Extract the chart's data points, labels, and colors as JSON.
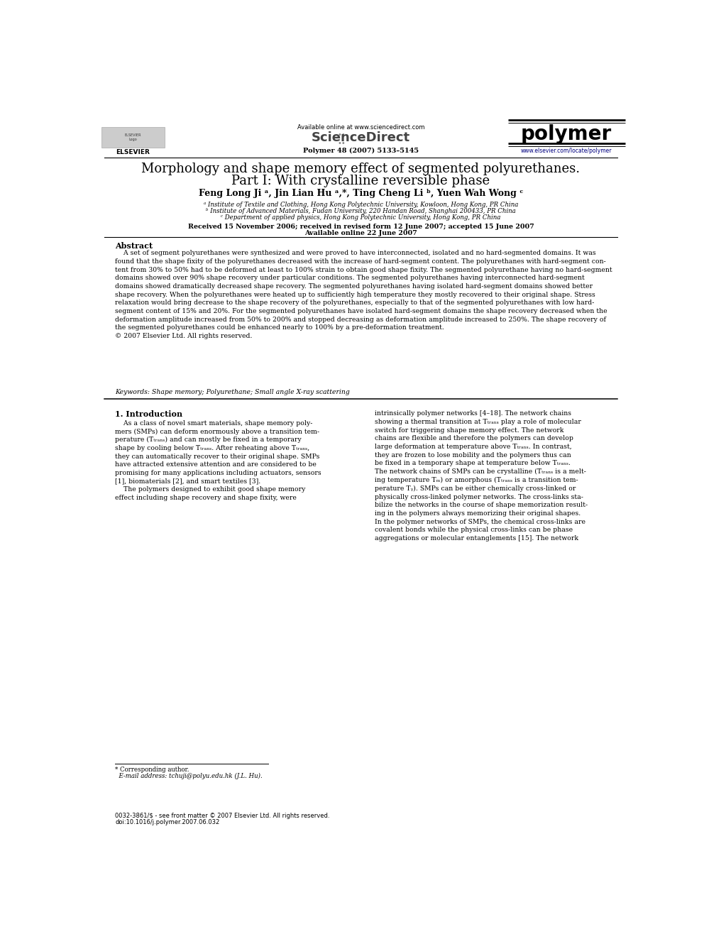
{
  "page_width": 9.92,
  "page_height": 13.23,
  "bg_color": "#ffffff",
  "title_line1": "Morphology and shape memory effect of segmented polyurethanes.",
  "title_line2": "Part I: With crystalline reversible phase",
  "authors": "Feng Long Ji ᵃ, Jin Lian Hu ᵃ,*, Ting Cheng Li ᵇ, Yuen Wah Wong ᶜ",
  "affil_a": "ᵃ Institute of Textile and Clothing, Hong Kong Polytechnic University, Kowloon, Hong Kong, PR China",
  "affil_b": "ᵇ Institute of Advanced Materials, Fudan University, 220 Handan Road, Shanghai 200433, PR China",
  "affil_c": "ᶜ Department of applied physics, Hong Kong Polytechnic University, Hong Kong, PR China",
  "received": "Received 15 November 2006; received in revised form 12 June 2007; accepted 15 June 2007",
  "available": "Available online 22 June 2007",
  "journal_info": "Polymer 48 (2007) 5133–5145",
  "abstract_title": "Abstract",
  "abstract_text": "    A set of segment polyurethanes were synthesized and were proved to have interconnected, isolated and no hard-segmented domains. It was\nfound that the shape fixity of the polyurethanes decreased with the increase of hard-segment content. The polyurethanes with hard-segment con-\ntent from 30% to 50% had to be deformed at least to 100% strain to obtain good shape fixity. The segmented polyurethane having no hard-segment\ndomains showed over 90% shape recovery under particular conditions. The segmented polyurethanes having interconnected hard-segment\ndomains showed dramatically decreased shape recovery. The segmented polyurethanes having isolated hard-segment domains showed better\nshape recovery. When the polyurethanes were heated up to sufficiently high temperature they mostly recovered to their original shape. Stress\nrelaxation would bring decrease to the shape recovery of the polyurethanes, especially to that of the segmented polyurethanes with low hard-\nsegment content of 15% and 20%. For the segmented polyurethanes have isolated hard-segment domains the shape recovery decreased when the\ndeformation amplitude increased from 50% to 200% and stopped decreasing as deformation amplitude increased to 250%. The shape recovery of\nthe segmented polyurethanes could be enhanced nearly to 100% by a pre-deformation treatment.\n© 2007 Elsevier Ltd. All rights reserved.",
  "keywords": "Keywords: Shape memory; Polyurethane; Small angle X-ray scattering",
  "section1_title": "1. Introduction",
  "section1_col1": "    As a class of novel smart materials, shape memory poly-\nmers (SMPs) can deform enormously above a transition tem-\nperature (Tₜᵣₐₙₛ) and can mostly be fixed in a temporary\nshape by cooling below Tₜᵣₐₙₛ. After reheating above Tₜᵣₐₙₛ,\nthey can automatically recover to their original shape. SMPs\nhave attracted extensive attention and are considered to be\npromising for many applications including actuators, sensors\n[1], biomaterials [2], and smart textiles [3].\n    The polymers designed to exhibit good shape memory\neffect including shape recovery and shape fixity, were",
  "section1_col2": "intrinsically polymer networks [4–18]. The network chains\nshowing a thermal transition at Tₜᵣₐₙₛ play a role of molecular\nswitch for triggering shape memory effect. The network\nchains are flexible and therefore the polymers can develop\nlarge deformation at temperature above Tₜᵣₐₙₛ. In contrast,\nthey are frozen to lose mobility and the polymers thus can\nbe fixed in a temporary shape at temperature below Tₜᵣₐₙₛ.\nThe network chains of SMPs can be crystalline (Tₜᵣₐₙₛ is a melt-\ning temperature Tₘ) or amorphous (Tₜᵣₐₙₛ is a transition tem-\nperature Tᵧ). SMPs can be either chemically cross-linked or\nphysically cross-linked polymer networks. The cross-links sta-\nbilize the networks in the course of shape memorization result-\ning in the polymers always memorizing their original shapes.\nIn the polymer networks of SMPs, the chemical cross-links are\ncovalent bonds while the physical cross-links can be phase\naggregations or molecular entanglements [15]. The network",
  "footnote_star": "* Corresponding author.",
  "footnote_email": "  E-mail address: tchuji@polyu.edu.hk (J.L. Hu).",
  "footer_line1": "0032-3861/$ - see front matter © 2007 Elsevier Ltd. All rights reserved.",
  "footer_line2": "doi:10.1016/j.polymer.2007.06.032",
  "sciencedirect_text": "Available online at www.sciencedirect.com",
  "sciencedirect_logo": "ScienceDirect",
  "polymer_logo": "polymer",
  "elsevier_label": "ELSEVIER",
  "elsevier_url": "www.elsevier.com/locate/polymer",
  "text_color": "#000000",
  "link_color": "#000080",
  "header_line_color": "#000000"
}
